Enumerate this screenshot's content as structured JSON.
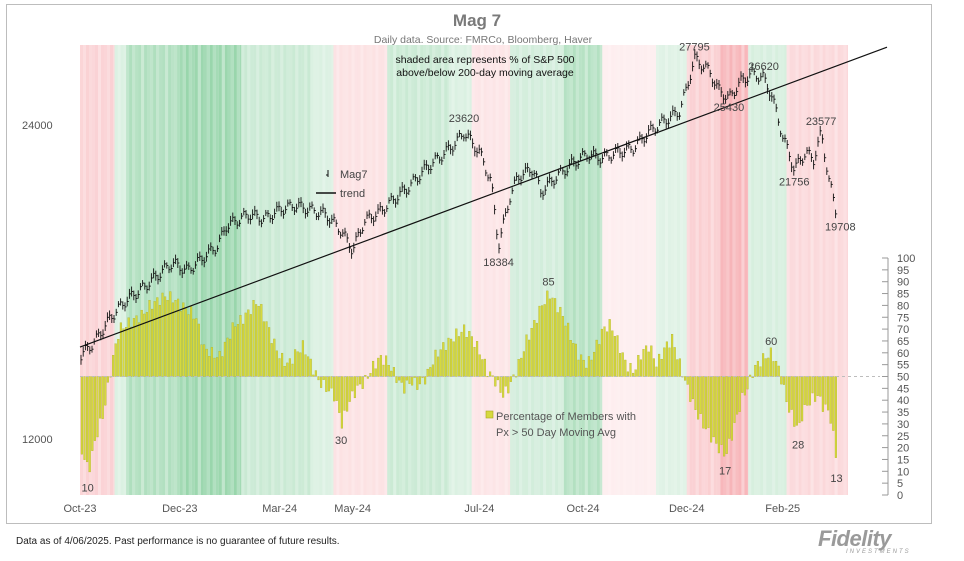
{
  "chart_data": {
    "type": "line",
    "title": "Mag 7",
    "subtitle": "Daily data.  Source: FMRCo, Bloomberg, Haver",
    "shading_note": [
      "shaded area represents % of S&P 500",
      "above/below 200-day moving average"
    ],
    "x_tick_labels": [
      "Oct-23",
      "Dec-23",
      "Mar-24",
      "May-24",
      "Jul-24",
      "Oct-24",
      "Dec-24",
      "Feb-25"
    ],
    "y_left_ticks": [
      "24000",
      "12000"
    ],
    "y_left_scale": "log",
    "y_right_ticks": [
      "0",
      "5",
      "10",
      "15",
      "20",
      "25",
      "30",
      "35",
      "40",
      "45",
      "50",
      "55",
      "60",
      "65",
      "70",
      "75",
      "80",
      "85",
      "90",
      "95",
      "100"
    ],
    "y_right_range": [
      0,
      100
    ],
    "right_axis_reference": 50,
    "legend": {
      "placement": "center-left",
      "entries": [
        "Mag7",
        "trend"
      ]
    },
    "series": [
      {
        "name": "Mag7",
        "axis": "left",
        "color": "#111111",
        "style": "ohlc-ticks",
        "points": [
          [
            0.0,
            14400
          ],
          [
            0.02,
            14900
          ],
          [
            0.04,
            15700
          ],
          [
            0.06,
            16300
          ],
          [
            0.08,
            16700
          ],
          [
            0.1,
            17200
          ],
          [
            0.12,
            17700
          ],
          [
            0.14,
            17400
          ],
          [
            0.16,
            17900
          ],
          [
            0.18,
            18400
          ],
          [
            0.19,
            19200
          ],
          [
            0.22,
            19700
          ],
          [
            0.24,
            19500
          ],
          [
            0.26,
            19900
          ],
          [
            0.28,
            20100
          ],
          [
            0.3,
            19900
          ],
          [
            0.32,
            19700
          ],
          [
            0.34,
            19000
          ],
          [
            0.355,
            18200
          ],
          [
            0.37,
            19400
          ],
          [
            0.39,
            19800
          ],
          [
            0.41,
            20400
          ],
          [
            0.43,
            21000
          ],
          [
            0.45,
            21800
          ],
          [
            0.47,
            22400
          ],
          [
            0.49,
            23100
          ],
          [
            0.5,
            23620
          ],
          [
            0.52,
            22600
          ],
          [
            0.535,
            21200
          ],
          [
            0.545,
            18384
          ],
          [
            0.56,
            20500
          ],
          [
            0.57,
            21400
          ],
          [
            0.59,
            21800
          ],
          [
            0.6,
            20700
          ],
          [
            0.62,
            21400
          ],
          [
            0.64,
            22000
          ],
          [
            0.66,
            22500
          ],
          [
            0.68,
            22300
          ],
          [
            0.7,
            22600
          ],
          [
            0.72,
            22800
          ],
          [
            0.74,
            23600
          ],
          [
            0.76,
            24200
          ],
          [
            0.78,
            24700
          ],
          [
            0.79,
            26000
          ],
          [
            0.8,
            27795
          ],
          [
            0.82,
            27000
          ],
          [
            0.83,
            26000
          ],
          [
            0.845,
            25430
          ],
          [
            0.86,
            26400
          ],
          [
            0.875,
            26900
          ],
          [
            0.89,
            26620
          ],
          [
            0.9,
            25700
          ],
          [
            0.915,
            23400
          ],
          [
            0.93,
            21756
          ],
          [
            0.945,
            22600
          ],
          [
            0.955,
            22200
          ],
          [
            0.965,
            23577
          ],
          [
            0.975,
            21300
          ],
          [
            0.985,
            19708
          ]
        ]
      },
      {
        "name": "trend",
        "axis": "left",
        "color": "#111111",
        "style": "line",
        "start": 14700,
        "end": 28500
      },
      {
        "name": "Percentage of Members with Px > 50 Day Moving Avg",
        "legend_lines": [
          "Percentage of Members with",
          "Px > 50 Day Moving Avg"
        ],
        "axis": "right",
        "color": "#d6d93e",
        "style": "bars-from-50",
        "points": [
          [
            0.0,
            20
          ],
          [
            0.01,
            10
          ],
          [
            0.02,
            25
          ],
          [
            0.03,
            35
          ],
          [
            0.04,
            55
          ],
          [
            0.05,
            70
          ],
          [
            0.06,
            72
          ],
          [
            0.07,
            74
          ],
          [
            0.08,
            76
          ],
          [
            0.09,
            80
          ],
          [
            0.1,
            82
          ],
          [
            0.11,
            84
          ],
          [
            0.12,
            83
          ],
          [
            0.13,
            80
          ],
          [
            0.14,
            78
          ],
          [
            0.15,
            75
          ],
          [
            0.16,
            62
          ],
          [
            0.17,
            60
          ],
          [
            0.18,
            58
          ],
          [
            0.19,
            65
          ],
          [
            0.2,
            72
          ],
          [
            0.21,
            74
          ],
          [
            0.22,
            78
          ],
          [
            0.23,
            82
          ],
          [
            0.24,
            74
          ],
          [
            0.25,
            65
          ],
          [
            0.26,
            58
          ],
          [
            0.27,
            55
          ],
          [
            0.28,
            60
          ],
          [
            0.29,
            63
          ],
          [
            0.3,
            55
          ],
          [
            0.31,
            48
          ],
          [
            0.32,
            45
          ],
          [
            0.33,
            42
          ],
          [
            0.34,
            30
          ],
          [
            0.35,
            40
          ],
          [
            0.36,
            45
          ],
          [
            0.37,
            48
          ],
          [
            0.38,
            54
          ],
          [
            0.39,
            58
          ],
          [
            0.4,
            56
          ],
          [
            0.41,
            50
          ],
          [
            0.42,
            45
          ],
          [
            0.43,
            48
          ],
          [
            0.44,
            46
          ],
          [
            0.45,
            50
          ],
          [
            0.46,
            58
          ],
          [
            0.47,
            62
          ],
          [
            0.48,
            65
          ],
          [
            0.49,
            68
          ],
          [
            0.5,
            70
          ],
          [
            0.51,
            66
          ],
          [
            0.52,
            60
          ],
          [
            0.53,
            52
          ],
          [
            0.54,
            48
          ],
          [
            0.55,
            42
          ],
          [
            0.56,
            47
          ],
          [
            0.57,
            55
          ],
          [
            0.58,
            65
          ],
          [
            0.59,
            72
          ],
          [
            0.6,
            80
          ],
          [
            0.61,
            85
          ],
          [
            0.62,
            80
          ],
          [
            0.63,
            74
          ],
          [
            0.64,
            65
          ],
          [
            0.65,
            58
          ],
          [
            0.66,
            55
          ],
          [
            0.67,
            62
          ],
          [
            0.68,
            70
          ],
          [
            0.69,
            72
          ],
          [
            0.7,
            64
          ],
          [
            0.71,
            55
          ],
          [
            0.72,
            52
          ],
          [
            0.73,
            60
          ],
          [
            0.74,
            63
          ],
          [
            0.75,
            55
          ],
          [
            0.76,
            62
          ],
          [
            0.77,
            66
          ],
          [
            0.78,
            55
          ],
          [
            0.79,
            45
          ],
          [
            0.8,
            36
          ],
          [
            0.81,
            30
          ],
          [
            0.82,
            25
          ],
          [
            0.83,
            20
          ],
          [
            0.84,
            17
          ],
          [
            0.85,
            28
          ],
          [
            0.86,
            40
          ],
          [
            0.87,
            47
          ],
          [
            0.875,
            52
          ],
          [
            0.88,
            55
          ],
          [
            0.89,
            58
          ],
          [
            0.9,
            60
          ],
          [
            0.905,
            56
          ],
          [
            0.91,
            52
          ],
          [
            0.92,
            38
          ],
          [
            0.93,
            30
          ],
          [
            0.935,
            28
          ],
          [
            0.94,
            35
          ],
          [
            0.95,
            40
          ],
          [
            0.96,
            42
          ],
          [
            0.965,
            38
          ],
          [
            0.975,
            35
          ],
          [
            0.985,
            13
          ]
        ]
      }
    ],
    "annotations": [
      {
        "text": "27795",
        "series": "Mag7"
      },
      {
        "text": "26620",
        "series": "Mag7"
      },
      {
        "text": "25430",
        "series": "Mag7"
      },
      {
        "text": "23620",
        "series": "Mag7"
      },
      {
        "text": "23577",
        "series": "Mag7"
      },
      {
        "text": "21756",
        "series": "Mag7"
      },
      {
        "text": "19708",
        "series": "Mag7"
      },
      {
        "text": "18384",
        "series": "Mag7"
      },
      {
        "text": "85",
        "series": "pct"
      },
      {
        "text": "60",
        "series": "pct"
      },
      {
        "text": "30",
        "series": "pct"
      },
      {
        "text": "28",
        "series": "pct"
      },
      {
        "text": "17",
        "series": "pct"
      },
      {
        "text": "13",
        "series": "pct"
      },
      {
        "text": "10",
        "series": "pct"
      }
    ],
    "background_regime": [
      {
        "from": 0.0,
        "to": 0.045,
        "state": "below",
        "level": 0.55
      },
      {
        "from": 0.045,
        "to": 0.06,
        "state": "above",
        "level": 0.25
      },
      {
        "from": 0.06,
        "to": 0.13,
        "state": "above",
        "level": 0.75
      },
      {
        "from": 0.13,
        "to": 0.21,
        "state": "above",
        "level": 1.0
      },
      {
        "from": 0.21,
        "to": 0.3,
        "state": "above",
        "level": 0.45
      },
      {
        "from": 0.3,
        "to": 0.33,
        "state": "above",
        "level": 0.25
      },
      {
        "from": 0.33,
        "to": 0.4,
        "state": "below",
        "level": 0.3
      },
      {
        "from": 0.4,
        "to": 0.48,
        "state": "above",
        "level": 0.45
      },
      {
        "from": 0.48,
        "to": 0.51,
        "state": "above",
        "level": 0.25
      },
      {
        "from": 0.51,
        "to": 0.56,
        "state": "below",
        "level": 0.25
      },
      {
        "from": 0.56,
        "to": 0.63,
        "state": "above",
        "level": 0.35
      },
      {
        "from": 0.63,
        "to": 0.68,
        "state": "above",
        "level": 0.7
      },
      {
        "from": 0.68,
        "to": 0.75,
        "state": "below",
        "level": 0.1
      },
      {
        "from": 0.75,
        "to": 0.79,
        "state": "above",
        "level": 0.2
      },
      {
        "from": 0.79,
        "to": 0.83,
        "state": "below",
        "level": 0.6
      },
      {
        "from": 0.83,
        "to": 0.87,
        "state": "below",
        "level": 1.0
      },
      {
        "from": 0.87,
        "to": 0.92,
        "state": "above",
        "level": 0.3
      },
      {
        "from": 0.92,
        "to": 1.0,
        "state": "below",
        "level": 0.45
      }
    ],
    "colors": {
      "above": "#4fb870",
      "below": "#f27f86",
      "bars": "#d6d93e",
      "bars_edge": "#a7a91d",
      "line": "#111111"
    },
    "grid": false
  },
  "footer": {
    "note": "Data as of 4/06/2025. Past performance is no guarantee of future results.",
    "logo": "Fidelity",
    "logo_sub": "INVESTMENTS"
  }
}
